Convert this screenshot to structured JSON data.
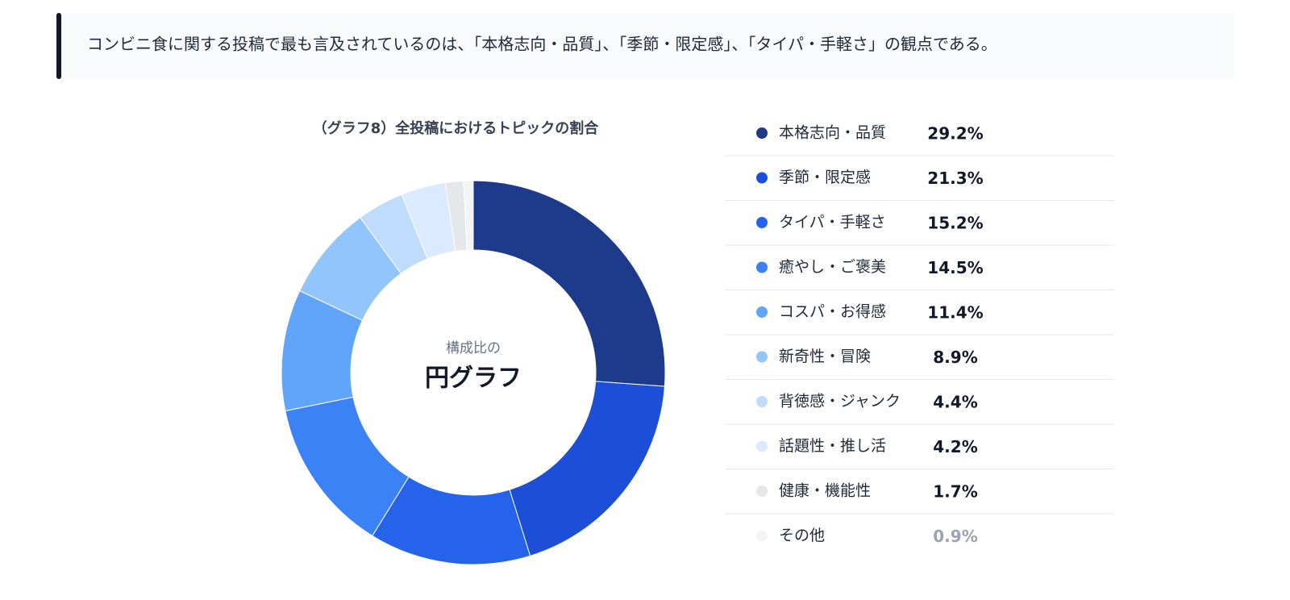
{
  "header": {
    "text": "コンビニ食に関する投稿で最も言及されているのは、「本格志向・品質」、「季節・限定感」、「タイパ・手軽さ」の観点である。"
  },
  "chart_data": {
    "type": "donut",
    "title": "（グラフ8）全投稿におけるトピックの割合",
    "center_subtitle": "構成比の",
    "center_title": "円グラフ",
    "categories": [
      "本格志向・品質",
      "季節・限定感",
      "タイパ・手軽さ",
      "癒やし・ご褒美",
      "コスパ・お得感",
      "新奇性・冒険",
      "背徳感・ジャンク",
      "話題性・推し活",
      "健康・機能性",
      "その他"
    ],
    "values": [
      29.2,
      21.3,
      15.2,
      14.5,
      11.4,
      8.9,
      4.4,
      4.2,
      1.7,
      0.9
    ],
    "value_labels": [
      "29.2%",
      "21.3%",
      "15.2%",
      "14.5%",
      "11.4%",
      "8.9%",
      "4.4%",
      "4.2%",
      "1.7%",
      "0.9%"
    ],
    "colors": [
      "#1e3a8a",
      "#1d4ed8",
      "#2563eb",
      "#3b82f6",
      "#60a5fa",
      "#93c5fd",
      "#bfdbfe",
      "#dbeafe",
      "#e5e7eb",
      "#f3f4f6"
    ]
  }
}
